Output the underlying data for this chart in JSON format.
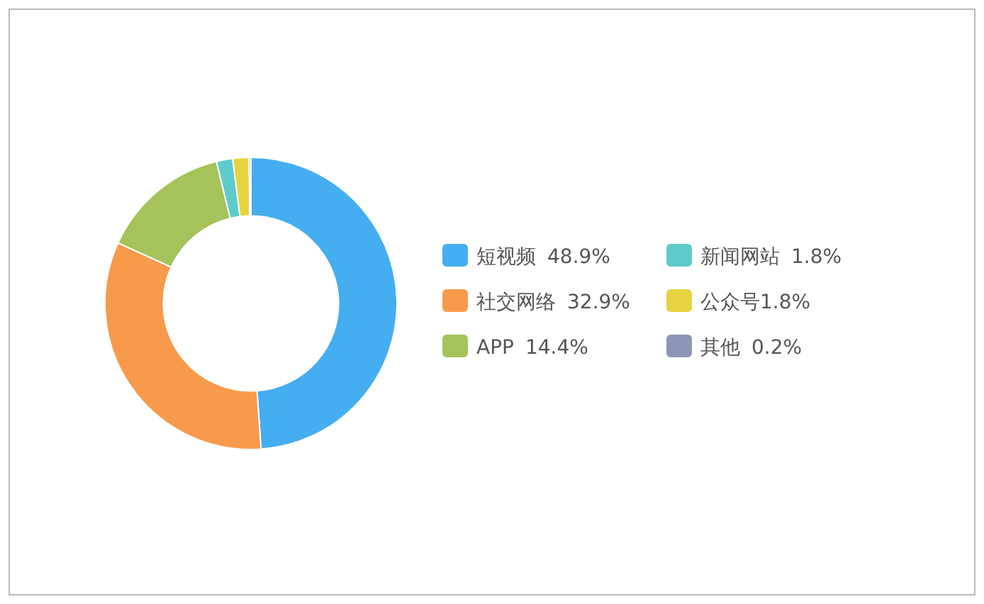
{
  "chart_data": {
    "type": "donut",
    "categories": [
      "短视频",
      "社交网络",
      "APP",
      "新闻网站",
      "公众号",
      "其他"
    ],
    "values": [
      48.9,
      32.9,
      14.4,
      1.8,
      1.8,
      0.2
    ],
    "colors": [
      "#45aef0",
      "#f79a4b",
      "#a5c35a",
      "#5ecbcb",
      "#e6d33f",
      "#8e96b8"
    ],
    "value_labels": [
      "48.9%",
      "32.9%",
      "14.4%",
      "1.8%",
      "1.8%",
      "0.2%"
    ],
    "legend": "right"
  }
}
